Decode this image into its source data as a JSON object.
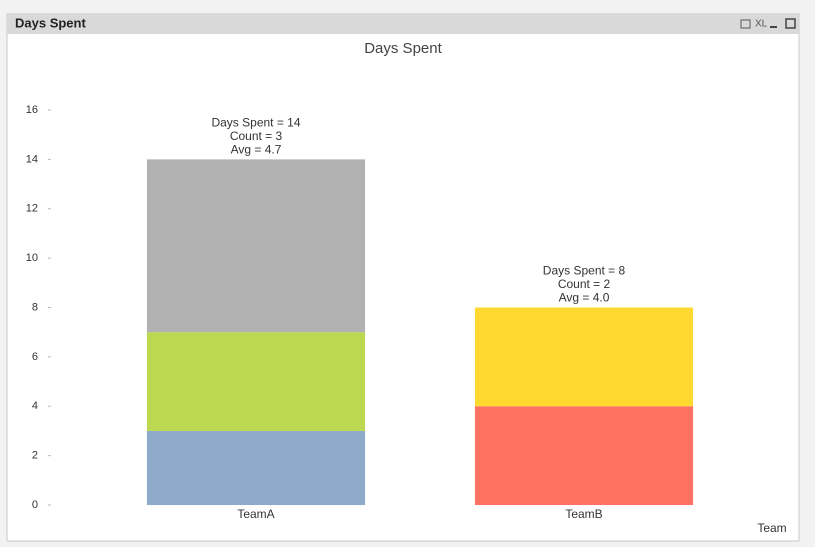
{
  "window": {
    "title": "Days Spent",
    "xl_label": "XL"
  },
  "chart_data": {
    "type": "stacked_bar",
    "title": "Days Spent",
    "x_label": "Team",
    "categories": [
      "TeamA",
      "TeamB"
    ],
    "series": [
      {
        "color": "#8eaacb",
        "values": [
          3,
          null
        ]
      },
      {
        "color": "#bcd851",
        "values": [
          4,
          null
        ]
      },
      {
        "color": "#b2b2b2",
        "values": [
          7,
          null
        ]
      },
      {
        "color": "#ff7262",
        "values": [
          null,
          4
        ]
      },
      {
        "color": "#ffd92f",
        "values": [
          null,
          4
        ]
      }
    ],
    "annotations": [
      [
        "Days Spent = 14",
        "Count = 3",
        "Avg = 4.7"
      ],
      [
        "Days Spent = 8",
        "Count = 2",
        "Avg = 4.0"
      ]
    ],
    "ylim": [
      0,
      16
    ],
    "yticks": [
      0,
      2,
      4,
      6,
      8,
      10,
      12,
      14,
      16
    ],
    "grid": false
  }
}
